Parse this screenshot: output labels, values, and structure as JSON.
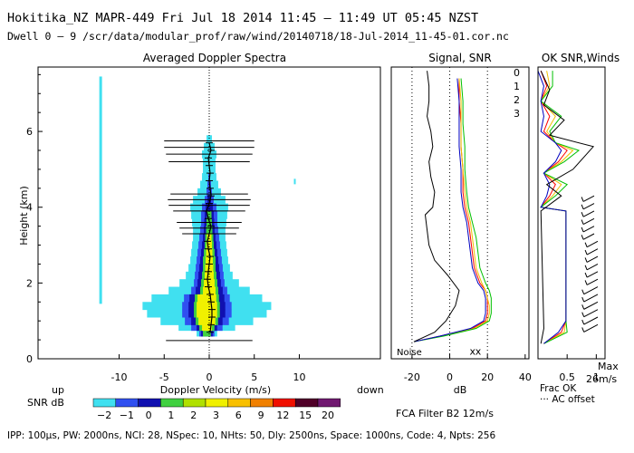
{
  "header": {
    "title": "Hokitika_NZ  MAPR-449  Fri Jul 18 2014 11:45 – 11:49 UT 05:45 NZST",
    "subtitle": "Dwell  0 –  9   /scr/data/modular_prof/raw/wind/20140718/18-Jul-2014_11-45-01.cor.nc"
  },
  "footer": {
    "params": "IPP: 100µs,  PW: 2000ns,  NCI:  28,  NSpec: 10, NHts: 50,  Dly: 2500ns,  Space: 1000ns,  Code: 4,  Npts: 256"
  },
  "colors": {
    "snr_palette": [
      "#40e0f0",
      "#3050f0",
      "#1010b0",
      "#40d040",
      "#b0e000",
      "#f0f000",
      "#f8c000",
      "#f08000",
      "#f01000",
      "#500028",
      "#701870"
    ],
    "channel0": "#ff0000",
    "channel1": "#f0c000",
    "channel2": "#00c000",
    "channel3": "#0000c0"
  },
  "chart_data": [
    {
      "type": "heatmap",
      "title": "Averaged Doppler Spectra",
      "xlabel": "Doppler Velocity (m/s)",
      "ylabel": "Height (km)",
      "xlim": [
        -19,
        19
      ],
      "ylim": [
        0,
        7.7
      ],
      "xticks": [
        -10,
        -5,
        0,
        5,
        10
      ],
      "yticks": [
        0,
        2,
        4,
        6
      ],
      "left_label": "up",
      "right_label": "down",
      "colorbar": {
        "label": "SNR dB",
        "ticks": [
          "−2",
          "−1",
          "0",
          "1",
          "2",
          "3",
          "6",
          "9",
          "12",
          "15",
          "20"
        ]
      },
      "peak_profile": {
        "height_km": [
          0.7,
          0.9,
          1.1,
          1.3,
          1.5,
          1.7,
          1.9,
          2.1,
          2.3,
          2.5,
          2.7,
          2.9,
          3.1,
          3.3,
          3.5,
          3.7,
          3.9,
          4.1,
          4.3,
          4.5,
          4.7,
          4.9,
          5.1,
          5.3,
          5.5,
          5.7
        ],
        "velocity_ms": [
          0.1,
          0.2,
          0.3,
          0.3,
          0.2,
          0.1,
          -0.1,
          -0.2,
          -0.1,
          0.0,
          0.1,
          -0.1,
          -0.2,
          0.0,
          0.2,
          -0.1,
          -0.3,
          0.0,
          0.2,
          0.1,
          0.0,
          0.1,
          0.0,
          -0.1,
          0.2,
          0.0
        ]
      },
      "spread_bars": [
        {
          "height_km": 0.48,
          "half_width_ms": 4.8
        },
        {
          "height_km": 3.3,
          "half_width_ms": 3.0
        },
        {
          "height_km": 3.45,
          "half_width_ms": 3.3
        },
        {
          "height_km": 3.6,
          "half_width_ms": 3.6
        },
        {
          "height_km": 3.9,
          "half_width_ms": 4.0
        },
        {
          "height_km": 4.05,
          "half_width_ms": 4.5
        },
        {
          "height_km": 4.2,
          "half_width_ms": 4.6
        },
        {
          "height_km": 4.35,
          "half_width_ms": 4.3
        },
        {
          "height_km": 5.2,
          "half_width_ms": 4.5
        },
        {
          "height_km": 5.4,
          "half_width_ms": 4.8
        },
        {
          "height_km": 5.58,
          "half_width_ms": 5.0
        },
        {
          "height_km": 5.75,
          "half_width_ms": 5.0
        }
      ]
    },
    {
      "type": "line",
      "title": "Signal, SNR",
      "xlabel": "dB",
      "xticks": [
        -20,
        0,
        20,
        40
      ],
      "xlim": [
        -31,
        42
      ],
      "ylim": [
        0,
        7.7
      ],
      "annotation": "Noise",
      "series": [
        {
          "name": "0",
          "height_km": [
            0.45,
            0.6,
            0.8,
            1.0,
            1.2,
            1.4,
            1.6,
            1.8,
            2.0,
            2.4,
            2.8,
            3.2,
            3.6,
            4.0,
            4.4,
            5.0,
            5.6,
            6.2,
            6.8,
            7.4
          ],
          "snr_db": [
            -19,
            -5,
            12,
            19,
            20,
            20,
            20,
            19,
            16,
            13,
            12,
            11,
            10,
            8,
            7,
            7,
            6,
            6,
            5,
            5
          ]
        },
        {
          "name": "1",
          "height_km": [
            0.45,
            0.6,
            0.8,
            1.0,
            1.2,
            1.4,
            1.6,
            1.8,
            2.0,
            2.4,
            2.8,
            3.2,
            3.6,
            4.0,
            4.4,
            5.0,
            5.6,
            6.2,
            6.8,
            7.4
          ],
          "snr_db": [
            -19,
            -4,
            13,
            20,
            21,
            21,
            20,
            19,
            17,
            14,
            13,
            12,
            11,
            9,
            8,
            7,
            6,
            6,
            6,
            5
          ]
        },
        {
          "name": "2",
          "height_km": [
            0.45,
            0.6,
            0.8,
            1.0,
            1.2,
            1.4,
            1.6,
            1.8,
            2.0,
            2.4,
            2.8,
            3.2,
            3.6,
            4.0,
            4.4,
            5.0,
            5.6,
            6.2,
            6.8,
            7.4
          ],
          "snr_db": [
            -19,
            -3,
            14,
            21,
            22,
            22,
            22,
            21,
            19,
            16,
            15,
            14,
            12,
            10,
            9,
            8,
            8,
            7,
            7,
            6
          ]
        },
        {
          "name": "3",
          "height_km": [
            0.45,
            0.6,
            0.8,
            1.0,
            1.2,
            1.4,
            1.6,
            1.8,
            2.0,
            2.4,
            2.8,
            3.2,
            3.6,
            4.0,
            4.4,
            5.0,
            5.6,
            6.2,
            6.8,
            7.4
          ],
          "snr_db": [
            -19,
            -5,
            11,
            18,
            19,
            19,
            19,
            18,
            15,
            12,
            11,
            10,
            9,
            7,
            6,
            6,
            5,
            5,
            5,
            4
          ]
        },
        {
          "name": "signal",
          "height_km": [
            0.45,
            0.7,
            1.0,
            1.4,
            1.8,
            2.2,
            2.6,
            3.0,
            3.4,
            3.8,
            4.0,
            4.4,
            4.8,
            5.2,
            5.6,
            6.0,
            6.4,
            6.8,
            7.2,
            7.6
          ],
          "snr_db": [
            -19,
            -8,
            -2,
            3,
            5,
            -1,
            -8,
            -11,
            -12,
            -13,
            -9,
            -8,
            -10,
            -11,
            -9,
            -10,
            -12,
            -11,
            -11,
            -12
          ]
        }
      ],
      "markers": [
        {
          "label": "x",
          "x_db": 12,
          "height_km": 0.2
        },
        {
          "label": "x",
          "x_db": 15,
          "height_km": 0.2
        }
      ]
    },
    {
      "type": "line",
      "title": "OK SNR,Winds",
      "xlabel": "Frac OK",
      "xticks": [
        "0.5",
        "1"
      ],
      "legend": [
        "0",
        "1",
        "2",
        "3"
      ],
      "max_label": "Max",
      "max_speed": "26m/s",
      "note": "AC offset",
      "filter_label": "FCA Filter B2 12m/s"
    }
  ]
}
